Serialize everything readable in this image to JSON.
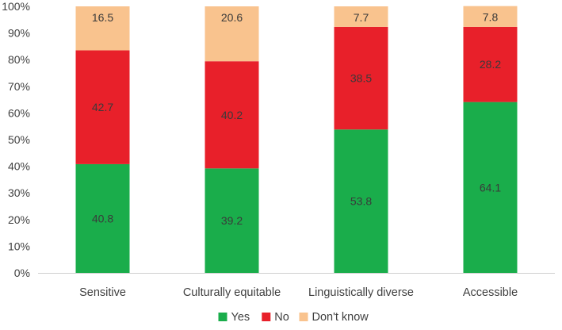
{
  "chart_data": {
    "type": "bar",
    "stacked": true,
    "percent_axis": true,
    "categories": [
      "Sensitive",
      "Culturally equitable",
      "Linguistically diverse",
      "Accessible"
    ],
    "series": [
      {
        "name": "Yes",
        "color": "#1aad4b",
        "values": [
          40.8,
          39.2,
          53.8,
          64.1
        ]
      },
      {
        "name": "No",
        "color": "#e8202a",
        "values": [
          42.7,
          40.2,
          38.5,
          28.2
        ]
      },
      {
        "name": "Don't know",
        "color": "#f9c38e",
        "values": [
          16.5,
          20.6,
          7.7,
          7.8
        ]
      }
    ],
    "ylim": [
      0,
      100
    ],
    "yticks": [
      "0%",
      "10%",
      "20%",
      "30%",
      "40%",
      "50%",
      "60%",
      "70%",
      "80%",
      "90%",
      "100%"
    ],
    "grid": false,
    "legend_position": "bottom",
    "title": "",
    "xlabel": "",
    "ylabel": ""
  }
}
